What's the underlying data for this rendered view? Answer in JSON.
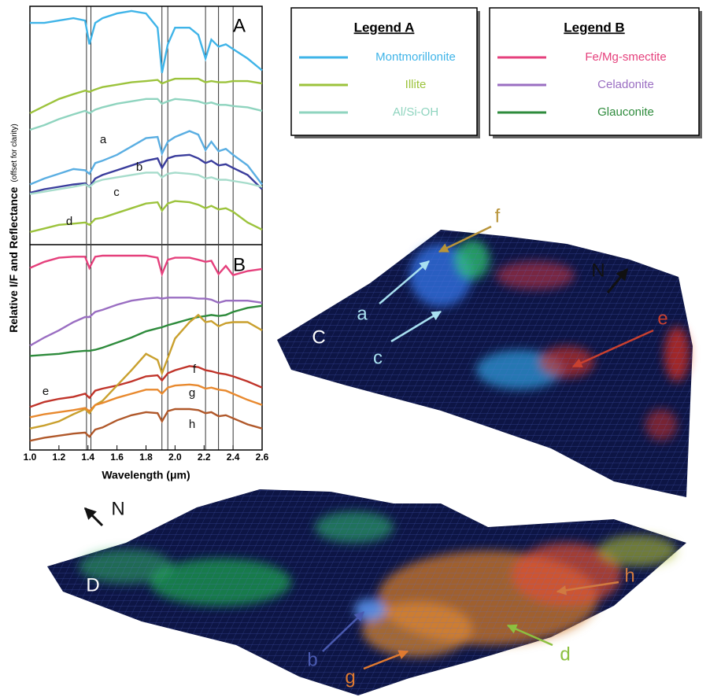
{
  "chart_data": [
    {
      "type": "line",
      "panel": "A",
      "legend_title": "Legend A",
      "ylabel": "Relative I/F and Reflectance",
      "ylabel_note": "(offset for clarity)",
      "xlim": [
        1.0,
        2.6
      ],
      "ylim": [
        0,
        10
      ],
      "reference_lines": [
        1.39,
        1.42,
        1.91,
        1.95,
        2.21,
        2.3,
        2.4
      ],
      "x": [
        1.0,
        1.1,
        1.2,
        1.3,
        1.38,
        1.41,
        1.45,
        1.5,
        1.6,
        1.7,
        1.8,
        1.88,
        1.91,
        1.95,
        2.0,
        2.1,
        2.16,
        2.21,
        2.25,
        2.3,
        2.35,
        2.4,
        2.5,
        2.6
      ],
      "series": [
        {
          "name": "Montmorillonite",
          "color": "#3fb4e8",
          "in_legend": true,
          "values": [
            9.3,
            9.3,
            9.4,
            9.5,
            9.4,
            8.4,
            9.3,
            9.5,
            9.7,
            9.8,
            9.7,
            9.1,
            7.2,
            8.4,
            9.1,
            9.1,
            8.8,
            7.8,
            8.6,
            8.3,
            8.4,
            8.2,
            7.8,
            7.3
          ]
        },
        {
          "name": "Illite",
          "color": "#9cc33c",
          "in_legend": true,
          "values": [
            5.5,
            5.8,
            6.1,
            6.3,
            6.45,
            6.4,
            6.5,
            6.6,
            6.7,
            6.8,
            6.85,
            6.9,
            6.75,
            6.85,
            6.95,
            6.95,
            6.95,
            6.8,
            6.85,
            6.8,
            6.8,
            6.85,
            6.85,
            6.75
          ]
        },
        {
          "name": "Al/Si-OH",
          "color": "#8fd4bf",
          "in_legend": true,
          "values": [
            4.8,
            5.0,
            5.25,
            5.45,
            5.6,
            5.5,
            5.65,
            5.75,
            5.9,
            6.0,
            6.1,
            6.1,
            5.9,
            6.0,
            6.1,
            6.05,
            6.0,
            5.9,
            5.95,
            5.85,
            5.85,
            5.8,
            5.75,
            5.6
          ]
        },
        {
          "name": "a",
          "color": "#5aaee2",
          "in_legend": false,
          "values": [
            2.5,
            2.75,
            2.95,
            3.15,
            3.1,
            2.95,
            3.4,
            3.5,
            3.75,
            4.1,
            4.45,
            4.5,
            3.8,
            4.3,
            4.5,
            4.75,
            4.6,
            3.95,
            4.3,
            3.9,
            4.0,
            3.75,
            3.3,
            2.5
          ]
        },
        {
          "name": "b",
          "color": "#3a3d9c",
          "in_legend": false,
          "values": [
            2.15,
            2.3,
            2.4,
            2.5,
            2.55,
            2.4,
            2.75,
            2.9,
            3.1,
            3.3,
            3.5,
            3.6,
            3.2,
            3.6,
            3.7,
            3.75,
            3.6,
            3.4,
            3.5,
            3.3,
            3.35,
            3.2,
            2.9,
            2.3
          ]
        },
        {
          "name": "c",
          "color": "#a6dccb",
          "in_legend": false,
          "values": [
            2.1,
            2.2,
            2.3,
            2.4,
            2.5,
            2.4,
            2.6,
            2.7,
            2.8,
            2.9,
            3.0,
            3.0,
            2.8,
            2.95,
            3.0,
            2.95,
            2.9,
            2.75,
            2.8,
            2.7,
            2.7,
            2.65,
            2.55,
            2.4
          ]
        },
        {
          "name": "d",
          "color": "#9cc33c",
          "in_legend": false,
          "values": [
            0.5,
            0.65,
            0.8,
            0.85,
            0.9,
            0.8,
            1.05,
            1.1,
            1.3,
            1.5,
            1.7,
            1.75,
            1.4,
            1.7,
            1.8,
            1.75,
            1.65,
            1.5,
            1.6,
            1.45,
            1.5,
            1.35,
            0.9,
            0.6
          ]
        }
      ]
    },
    {
      "type": "line",
      "panel": "B",
      "legend_title": "Legend B",
      "xlabel": "Wavelength (μm)",
      "xlim": [
        1.0,
        2.6
      ],
      "ylim": [
        0,
        10
      ],
      "reference_lines": [
        1.39,
        1.42,
        1.91,
        1.95,
        2.21,
        2.3,
        2.4
      ],
      "xticks": [
        {
          "value": 1.0,
          "label": "1.0"
        },
        1.2,
        1.4,
        1.6,
        1.8,
        {
          "value": 2.0,
          "label": "2.0"
        },
        2.2,
        2.4,
        2.6
      ],
      "x": [
        1.0,
        1.1,
        1.2,
        1.3,
        1.38,
        1.41,
        1.45,
        1.5,
        1.6,
        1.7,
        1.8,
        1.88,
        1.91,
        1.95,
        2.0,
        2.1,
        2.16,
        2.21,
        2.25,
        2.3,
        2.35,
        2.4,
        2.5,
        2.6
      ],
      "series": [
        {
          "name": "Fe/Mg-smectite",
          "color": "#e5407c",
          "in_legend": true,
          "values": [
            8.9,
            9.2,
            9.4,
            9.45,
            9.45,
            8.9,
            9.45,
            9.5,
            9.5,
            9.5,
            9.5,
            9.4,
            8.6,
            9.3,
            9.4,
            9.4,
            9.3,
            9.2,
            9.25,
            8.6,
            9.0,
            8.55,
            8.75,
            8.85
          ]
        },
        {
          "name": "Celadonite",
          "color": "#9a6ec2",
          "in_legend": true,
          "values": [
            5.1,
            5.5,
            5.85,
            6.25,
            6.5,
            6.5,
            6.75,
            6.85,
            7.1,
            7.3,
            7.4,
            7.45,
            7.4,
            7.45,
            7.45,
            7.45,
            7.4,
            7.4,
            7.35,
            7.2,
            7.3,
            7.3,
            7.3,
            7.2
          ]
        },
        {
          "name": "Glauconite",
          "color": "#2e8b3c",
          "in_legend": true,
          "values": [
            4.6,
            4.65,
            4.7,
            4.8,
            4.85,
            4.85,
            4.9,
            5.0,
            5.25,
            5.5,
            5.8,
            5.95,
            6.0,
            6.1,
            6.2,
            6.4,
            6.5,
            6.55,
            6.6,
            6.55,
            6.6,
            6.75,
            6.95,
            7.05
          ]
        },
        {
          "name": "e",
          "color": "#c0342a",
          "in_legend": false,
          "values": [
            2.1,
            2.35,
            2.5,
            2.6,
            2.75,
            2.55,
            2.9,
            3.0,
            3.15,
            3.35,
            3.6,
            3.65,
            3.4,
            3.75,
            3.9,
            4.1,
            4.05,
            3.9,
            3.85,
            3.75,
            3.7,
            3.6,
            3.35,
            3.05
          ]
        },
        {
          "name": "f",
          "color": "#c9a02e",
          "in_legend": false,
          "values": [
            1.05,
            1.2,
            1.4,
            1.75,
            2.0,
            1.8,
            2.2,
            2.4,
            3.15,
            3.9,
            4.7,
            4.4,
            3.75,
            4.5,
            5.45,
            6.25,
            6.6,
            6.25,
            6.3,
            6.05,
            6.2,
            6.25,
            6.25,
            5.85
          ]
        },
        {
          "name": "g",
          "color": "#e8892e",
          "in_legend": false,
          "values": [
            1.6,
            1.75,
            1.85,
            1.95,
            2.05,
            1.9,
            2.2,
            2.3,
            2.55,
            2.75,
            2.95,
            2.95,
            2.75,
            3.05,
            3.15,
            3.2,
            3.15,
            3.0,
            3.05,
            2.95,
            2.9,
            2.75,
            2.45,
            2.2
          ]
        },
        {
          "name": "h",
          "color": "#b0582a",
          "in_legend": false,
          "values": [
            0.45,
            0.6,
            0.7,
            0.8,
            0.85,
            0.65,
            1.0,
            1.1,
            1.45,
            1.7,
            1.85,
            1.8,
            1.4,
            1.9,
            2.0,
            2.0,
            1.95,
            1.8,
            1.85,
            1.65,
            1.7,
            1.55,
            1.25,
            1.05
          ]
        }
      ]
    }
  ],
  "terrain": [
    {
      "panel": "C",
      "north": "N",
      "labels": [
        {
          "text": "f",
          "color": "#b8943a"
        },
        {
          "text": "a",
          "color": "#a8e0f0"
        },
        {
          "text": "c",
          "color": "#a8e0f0"
        },
        {
          "text": "e",
          "color": "#c8402f"
        }
      ]
    },
    {
      "panel": "D",
      "north": "N",
      "labels": [
        {
          "text": "h",
          "color": "#d07a40"
        },
        {
          "text": "b",
          "color": "#4a5ab0"
        },
        {
          "text": "d",
          "color": "#8cc040"
        },
        {
          "text": "g",
          "color": "#e07a30"
        }
      ]
    }
  ]
}
